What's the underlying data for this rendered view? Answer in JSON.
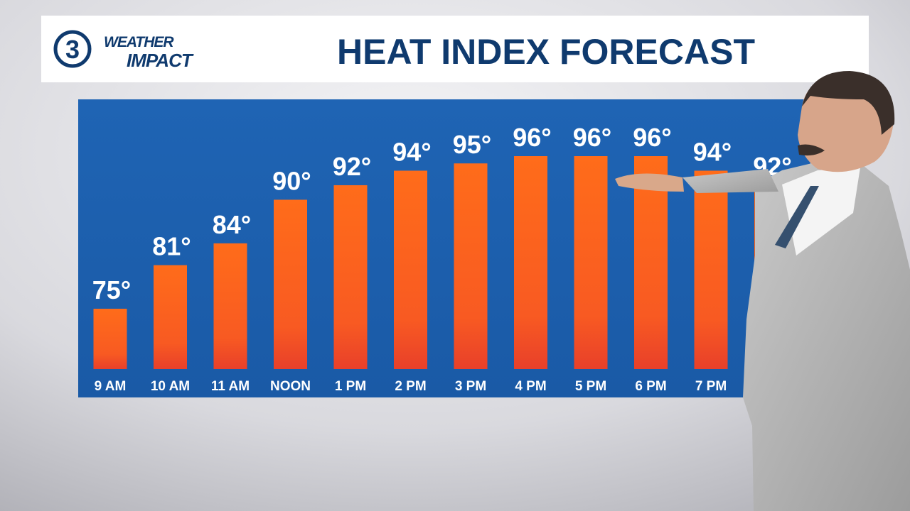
{
  "logo": {
    "number": "3",
    "line1": "WEATHER",
    "line2": "IMPACT"
  },
  "chart_data": {
    "type": "bar",
    "title": "HEAT INDEX FORECAST",
    "categories": [
      "9 AM",
      "10 AM",
      "11 AM",
      "NOON",
      "1 PM",
      "2 PM",
      "3 PM",
      "4 PM",
      "5 PM",
      "6 PM",
      "7 PM",
      null
    ],
    "values": [
      75,
      81,
      84,
      90,
      92,
      94,
      95,
      96,
      96,
      96,
      94,
      92
    ],
    "value_labels": [
      "75°",
      "81°",
      "84°",
      "90°",
      "92°",
      "94°",
      "95°",
      "96°",
      "96°",
      "96°",
      "94°",
      "92°"
    ],
    "color": "#ff6a1c"
  }
}
